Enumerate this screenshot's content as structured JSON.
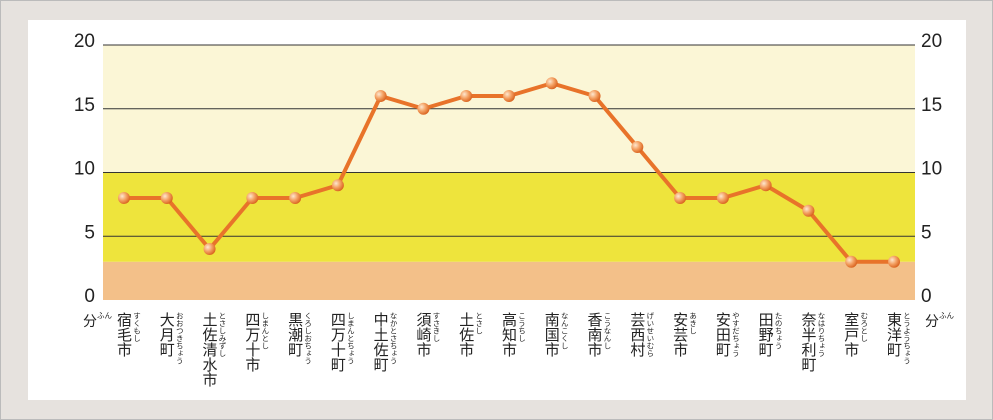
{
  "chart_data": {
    "type": "line",
    "y_unit": "分",
    "y_unit_reading": "ふん",
    "categories": [
      "宿毛市",
      "大月町",
      "土佐清水市",
      "四万十市",
      "黒潮町",
      "四万十町",
      "中土佐町",
      "須崎市",
      "土佐市",
      "高知市",
      "南国市",
      "香南市",
      "芸西村",
      "安芸市",
      "安田町",
      "田野町",
      "奈半利町",
      "室戸市",
      "東洋町"
    ],
    "category_readings": [
      "すくもし",
      "おおつきちょう",
      "とさしみずし",
      "しまんとし",
      "くろしおちょう",
      "しまんとちょう",
      "なかとさちょう",
      "すさきし",
      "とさし",
      "こうちし",
      "なんこくし",
      "こうなんし",
      "げいせいむら",
      "あきし",
      "やすだちょう",
      "たのちょう",
      "なはりちょう",
      "むろとし",
      "とうようちょう"
    ],
    "series": [
      {
        "color": "#e8732a",
        "values": [
          8,
          8,
          4,
          8,
          8,
          9,
          16,
          15,
          16,
          16,
          17,
          16,
          12,
          8,
          8,
          9,
          7,
          3,
          3
        ]
      }
    ],
    "ylim": [
      0,
      20
    ],
    "yticks": [
      0,
      5,
      10,
      15,
      20
    ],
    "grid": true,
    "bands": [
      {
        "from": 0,
        "to": 3,
        "color": "#f3c089"
      },
      {
        "from": 3,
        "to": 10,
        "color": "#eee43c"
      },
      {
        "from": 10,
        "to": 20,
        "color": "#fbf6d6"
      }
    ]
  }
}
